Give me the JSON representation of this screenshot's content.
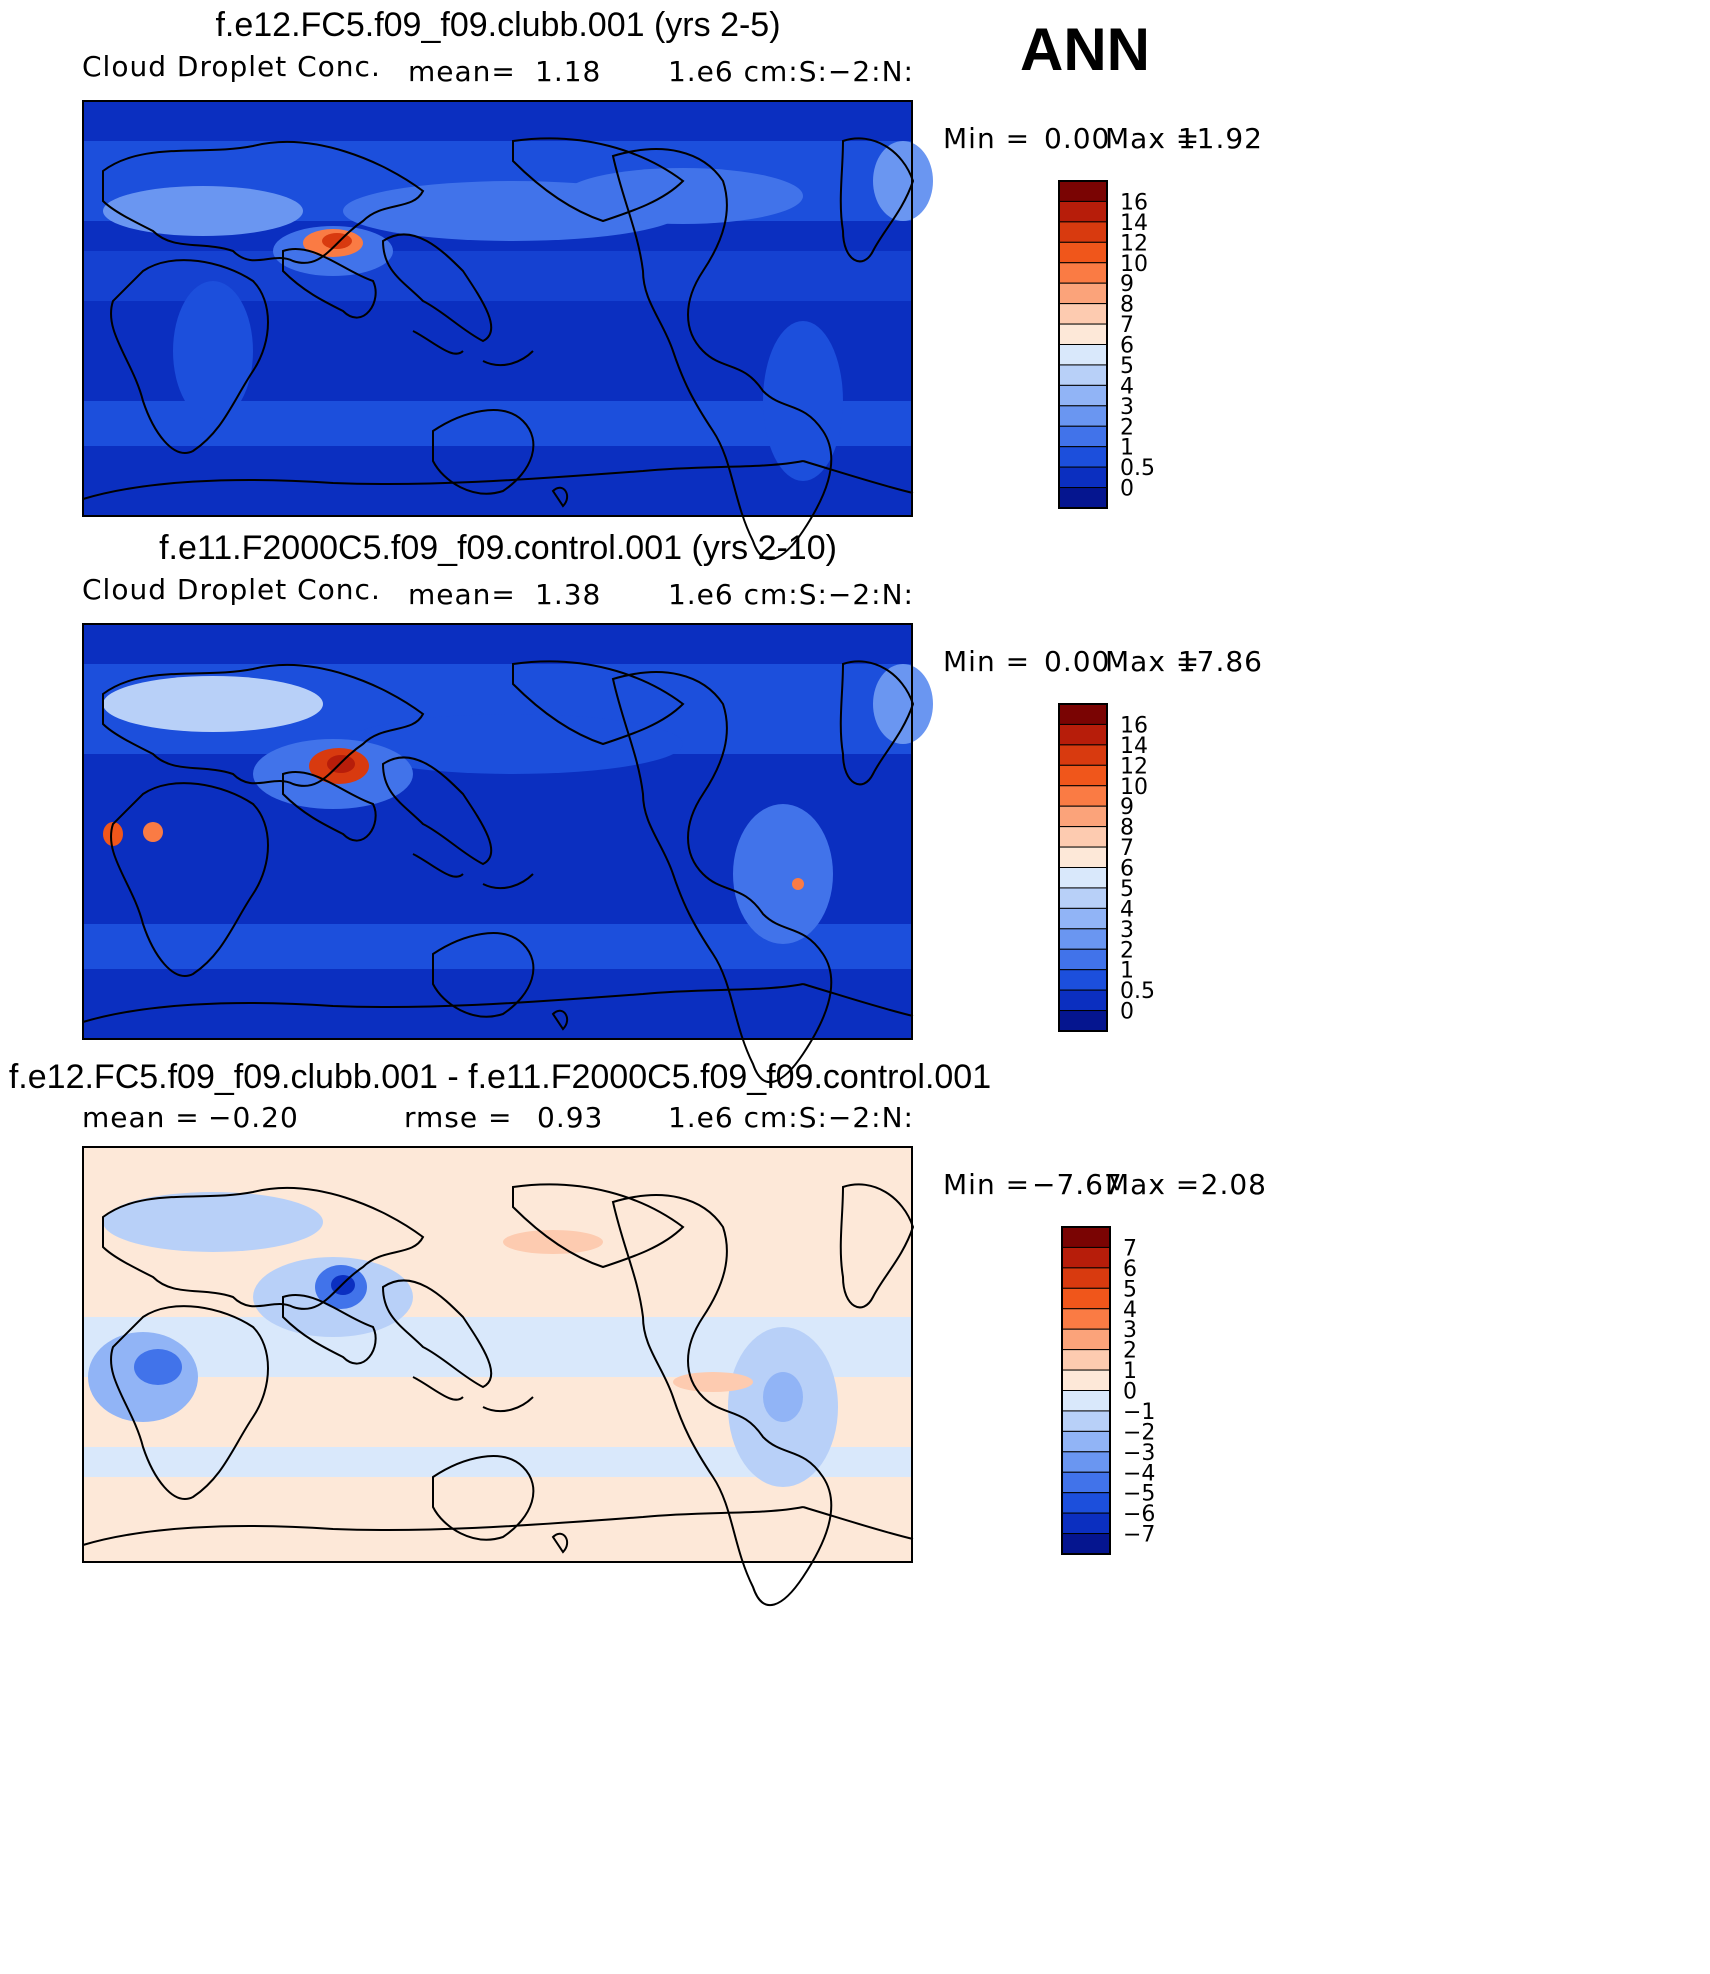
{
  "season": "ANN",
  "panels": [
    {
      "title": "f.e12.FC5.f09_f09.clubb.001 (yrs 2-5)",
      "left_label": "Cloud Droplet Conc.",
      "mid_label": "mean=",
      "mid_value": "1.18",
      "units": "1.e6 cm:S:-2:N:",
      "min_label": "Min =",
      "min_value": "0.00",
      "max_label": "Max =",
      "max_value": "11.92",
      "colorbar_levels": [
        "16",
        "14",
        "12",
        "10",
        "9",
        "8",
        "7",
        "6",
        "5",
        "4",
        "3",
        "2",
        "1",
        "0.5",
        "0"
      ]
    },
    {
      "title": "f.e11.F2000C5.f09_f09.control.001 (yrs 2-10)",
      "left_label": "Cloud Droplet Conc.",
      "mid_label": "mean=",
      "mid_value": "1.38",
      "units": "1.e6 cm:S:-2:N:",
      "min_label": "Min =",
      "min_value": "0.00",
      "max_label": "Max =",
      "max_value": "17.86",
      "colorbar_levels": [
        "16",
        "14",
        "12",
        "10",
        "9",
        "8",
        "7",
        "6",
        "5",
        "4",
        "3",
        "2",
        "1",
        "0.5",
        "0"
      ]
    },
    {
      "title": "f.e12.FC5.f09_f09.clubb.001 - f.e11.F2000C5.f09_f09.control.001",
      "left_label": "mean =",
      "left_value": "-0.20",
      "mid_label": "rmse =",
      "mid_value": "0.93",
      "units": "1.e6 cm:S:-2:N:",
      "min_label": "Min =",
      "min_value": "-7.67",
      "max_label": "Max =",
      "max_value": "2.08",
      "colorbar_levels": [
        "7",
        "6",
        "5",
        "4",
        "3",
        "2",
        "1",
        "0",
        "-1",
        "-2",
        "-3",
        "-4",
        "-5",
        "-6",
        "-7"
      ]
    }
  ],
  "colors": {
    "abs_scale": [
      "#7a0403",
      "#b71d0a",
      "#d83a0f",
      "#f0561b",
      "#fa7b44",
      "#fba37a",
      "#fdcbb0",
      "#fde8d8",
      "#d9e8fb",
      "#b8d0f8",
      "#91b4f6",
      "#6a96f1",
      "#4173ea",
      "#1c4fdc",
      "#0b2fc0",
      "#05158f"
    ],
    "diff_scale": [
      "#7a0403",
      "#b71d0a",
      "#d83a0f",
      "#f0561b",
      "#fa7b44",
      "#fba37a",
      "#fdcbb0",
      "#fde8d8",
      "#d9e8fb",
      "#b8d0f8",
      "#91b4f6",
      "#6a96f1",
      "#4173ea",
      "#1c4fdc",
      "#0b2fc0",
      "#05158f"
    ],
    "ocean_low": "#0b2fc0",
    "ocean_mid": "#1c4fdc",
    "diff_bg": "#fde8d8",
    "coast": "#000000"
  }
}
